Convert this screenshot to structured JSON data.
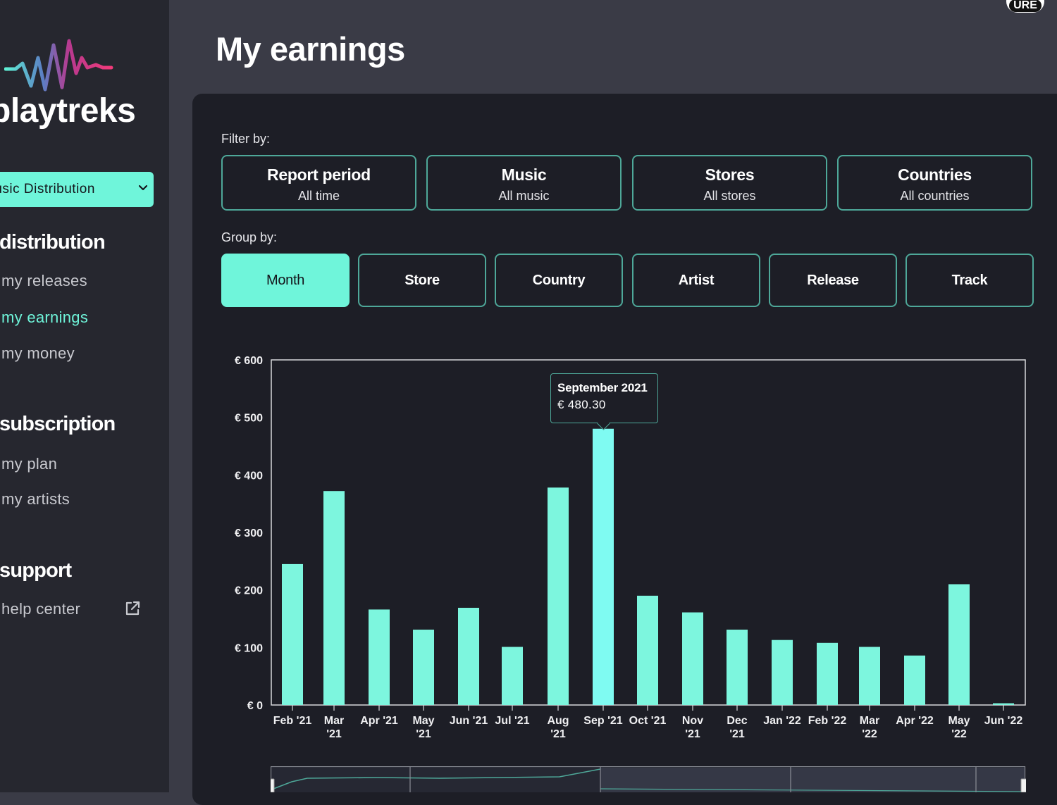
{
  "app": {
    "logo_text": "playtreks",
    "page_title": "My earnings",
    "corner_badge": "URE"
  },
  "sidebar": {
    "product_select": "Music Distribution",
    "sections": [
      {
        "title": "distribution",
        "items": [
          "my releases",
          "my earnings",
          "my money"
        ]
      },
      {
        "title": "subscription",
        "items": [
          "my plan",
          "my artists"
        ]
      },
      {
        "title": "support",
        "items": [
          "help center"
        ]
      }
    ],
    "active_item": "my earnings"
  },
  "filters": {
    "label": "Filter by:",
    "buttons": [
      {
        "title": "Report period",
        "value": "All time"
      },
      {
        "title": "Music",
        "value": "All music"
      },
      {
        "title": "Stores",
        "value": "All stores"
      },
      {
        "title": "Countries",
        "value": "All countries"
      }
    ]
  },
  "group_by": {
    "label": "Group by:",
    "buttons": [
      "Month",
      "Store",
      "Country",
      "Artist",
      "Release",
      "Track"
    ],
    "active": "Month"
  },
  "tooltip": {
    "title": "September 2021",
    "value": "€ 480.30"
  },
  "colors": {
    "accent": "#6ff5da",
    "bar": "#7df6de",
    "bar_highlight": "#7ffbf2",
    "panel": "#1d1e26",
    "sidebar": "#26272f",
    "background": "#3a3b46",
    "border": "#4ea899"
  },
  "chart_data": {
    "type": "bar",
    "categories": [
      [
        "Feb '21"
      ],
      [
        "Mar",
        "'21"
      ],
      [
        "Apr '21"
      ],
      [
        "May",
        "'21"
      ],
      [
        "Jun '21"
      ],
      [
        "Jul '21"
      ],
      [
        "Aug",
        "'21"
      ],
      [
        "Sep '21"
      ],
      [
        "Oct '21"
      ],
      [
        "Nov",
        "'21"
      ],
      [
        "Dec",
        "'21"
      ],
      [
        "Jan '22"
      ],
      [
        "Feb '22"
      ],
      [
        "Mar",
        "'22"
      ],
      [
        "Apr '22"
      ],
      [
        "May",
        "'22"
      ],
      [
        "Jun '22"
      ]
    ],
    "values": [
      245,
      372,
      166,
      131,
      169,
      101,
      378,
      480.3,
      190,
      161,
      131,
      113,
      108,
      101,
      86,
      210,
      3
    ],
    "highlight_index": 7,
    "ylim": [
      0,
      600
    ],
    "y_ticks": [
      "€ 0",
      "€ 100",
      "€ 200",
      "€ 300",
      "€ 400",
      "€ 500",
      "€ 600"
    ],
    "y_tick_values": [
      0,
      100,
      200,
      300,
      400,
      500,
      600
    ]
  }
}
